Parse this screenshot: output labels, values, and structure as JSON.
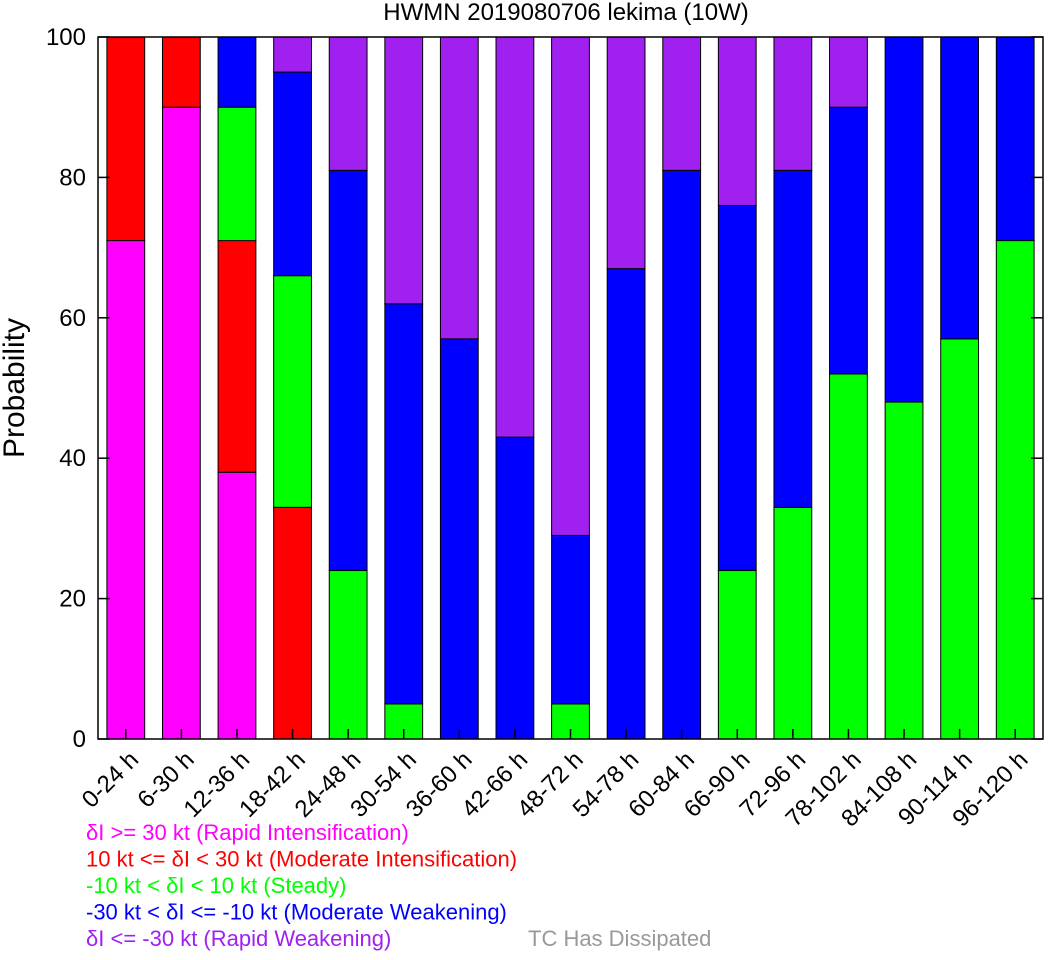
{
  "chart_data": {
    "type": "bar",
    "stacked": true,
    "title": "HWMN 2019080706 lekima (10W)",
    "xlabel": "",
    "ylabel": "Probability",
    "ylim": [
      0,
      100
    ],
    "yticks": [
      0,
      20,
      40,
      60,
      80,
      100
    ],
    "grid": false,
    "categories": [
      "0-24 h",
      "6-30 h",
      "12-36 h",
      "18-42 h",
      "24-48 h",
      "30-54 h",
      "36-60 h",
      "42-66 h",
      "48-72 h",
      "54-78 h",
      "60-84 h",
      "66-90 h",
      "72-96 h",
      "78-102 h",
      "84-108 h",
      "90-114 h",
      "96-120 h"
    ],
    "series": [
      {
        "name": "δI >= 30 kt (Rapid Intensification)",
        "color": "#ff00ff",
        "values": [
          71,
          90,
          38,
          0,
          0,
          0,
          0,
          0,
          0,
          0,
          0,
          0,
          0,
          0,
          0,
          0,
          0
        ]
      },
      {
        "name": "10 kt <= δI < 30 kt (Moderate Intensification)",
        "color": "#ff0000",
        "values": [
          29,
          10,
          33,
          33,
          0,
          0,
          0,
          0,
          0,
          0,
          0,
          0,
          0,
          0,
          0,
          0,
          0
        ]
      },
      {
        "name": "-10 kt < δI < 10 kt (Steady)",
        "color": "#00ff00",
        "values": [
          0,
          0,
          19,
          33,
          24,
          5,
          0,
          0,
          5,
          0,
          0,
          24,
          33,
          52,
          48,
          57,
          71
        ]
      },
      {
        "name": "-30 kt < δI <= -10 kt (Moderate Weakening)",
        "color": "#0000ff",
        "values": [
          0,
          0,
          10,
          29,
          57,
          57,
          57,
          43,
          24,
          67,
          81,
          52,
          48,
          38,
          52,
          43,
          29
        ]
      },
      {
        "name": "δI <= -30 kt (Rapid Weakening)",
        "color": "#a020f0",
        "values": [
          0,
          0,
          0,
          5,
          19,
          38,
          43,
          57,
          71,
          33,
          19,
          24,
          19,
          10,
          0,
          0,
          0
        ]
      },
      {
        "name": "TC Has Dissipated",
        "color": "#999999",
        "values": [
          0,
          0,
          0,
          0,
          0,
          0,
          0,
          0,
          0,
          0,
          0,
          0,
          0,
          0,
          0,
          0,
          0
        ]
      }
    ],
    "legend_placement": "bottom-left"
  }
}
